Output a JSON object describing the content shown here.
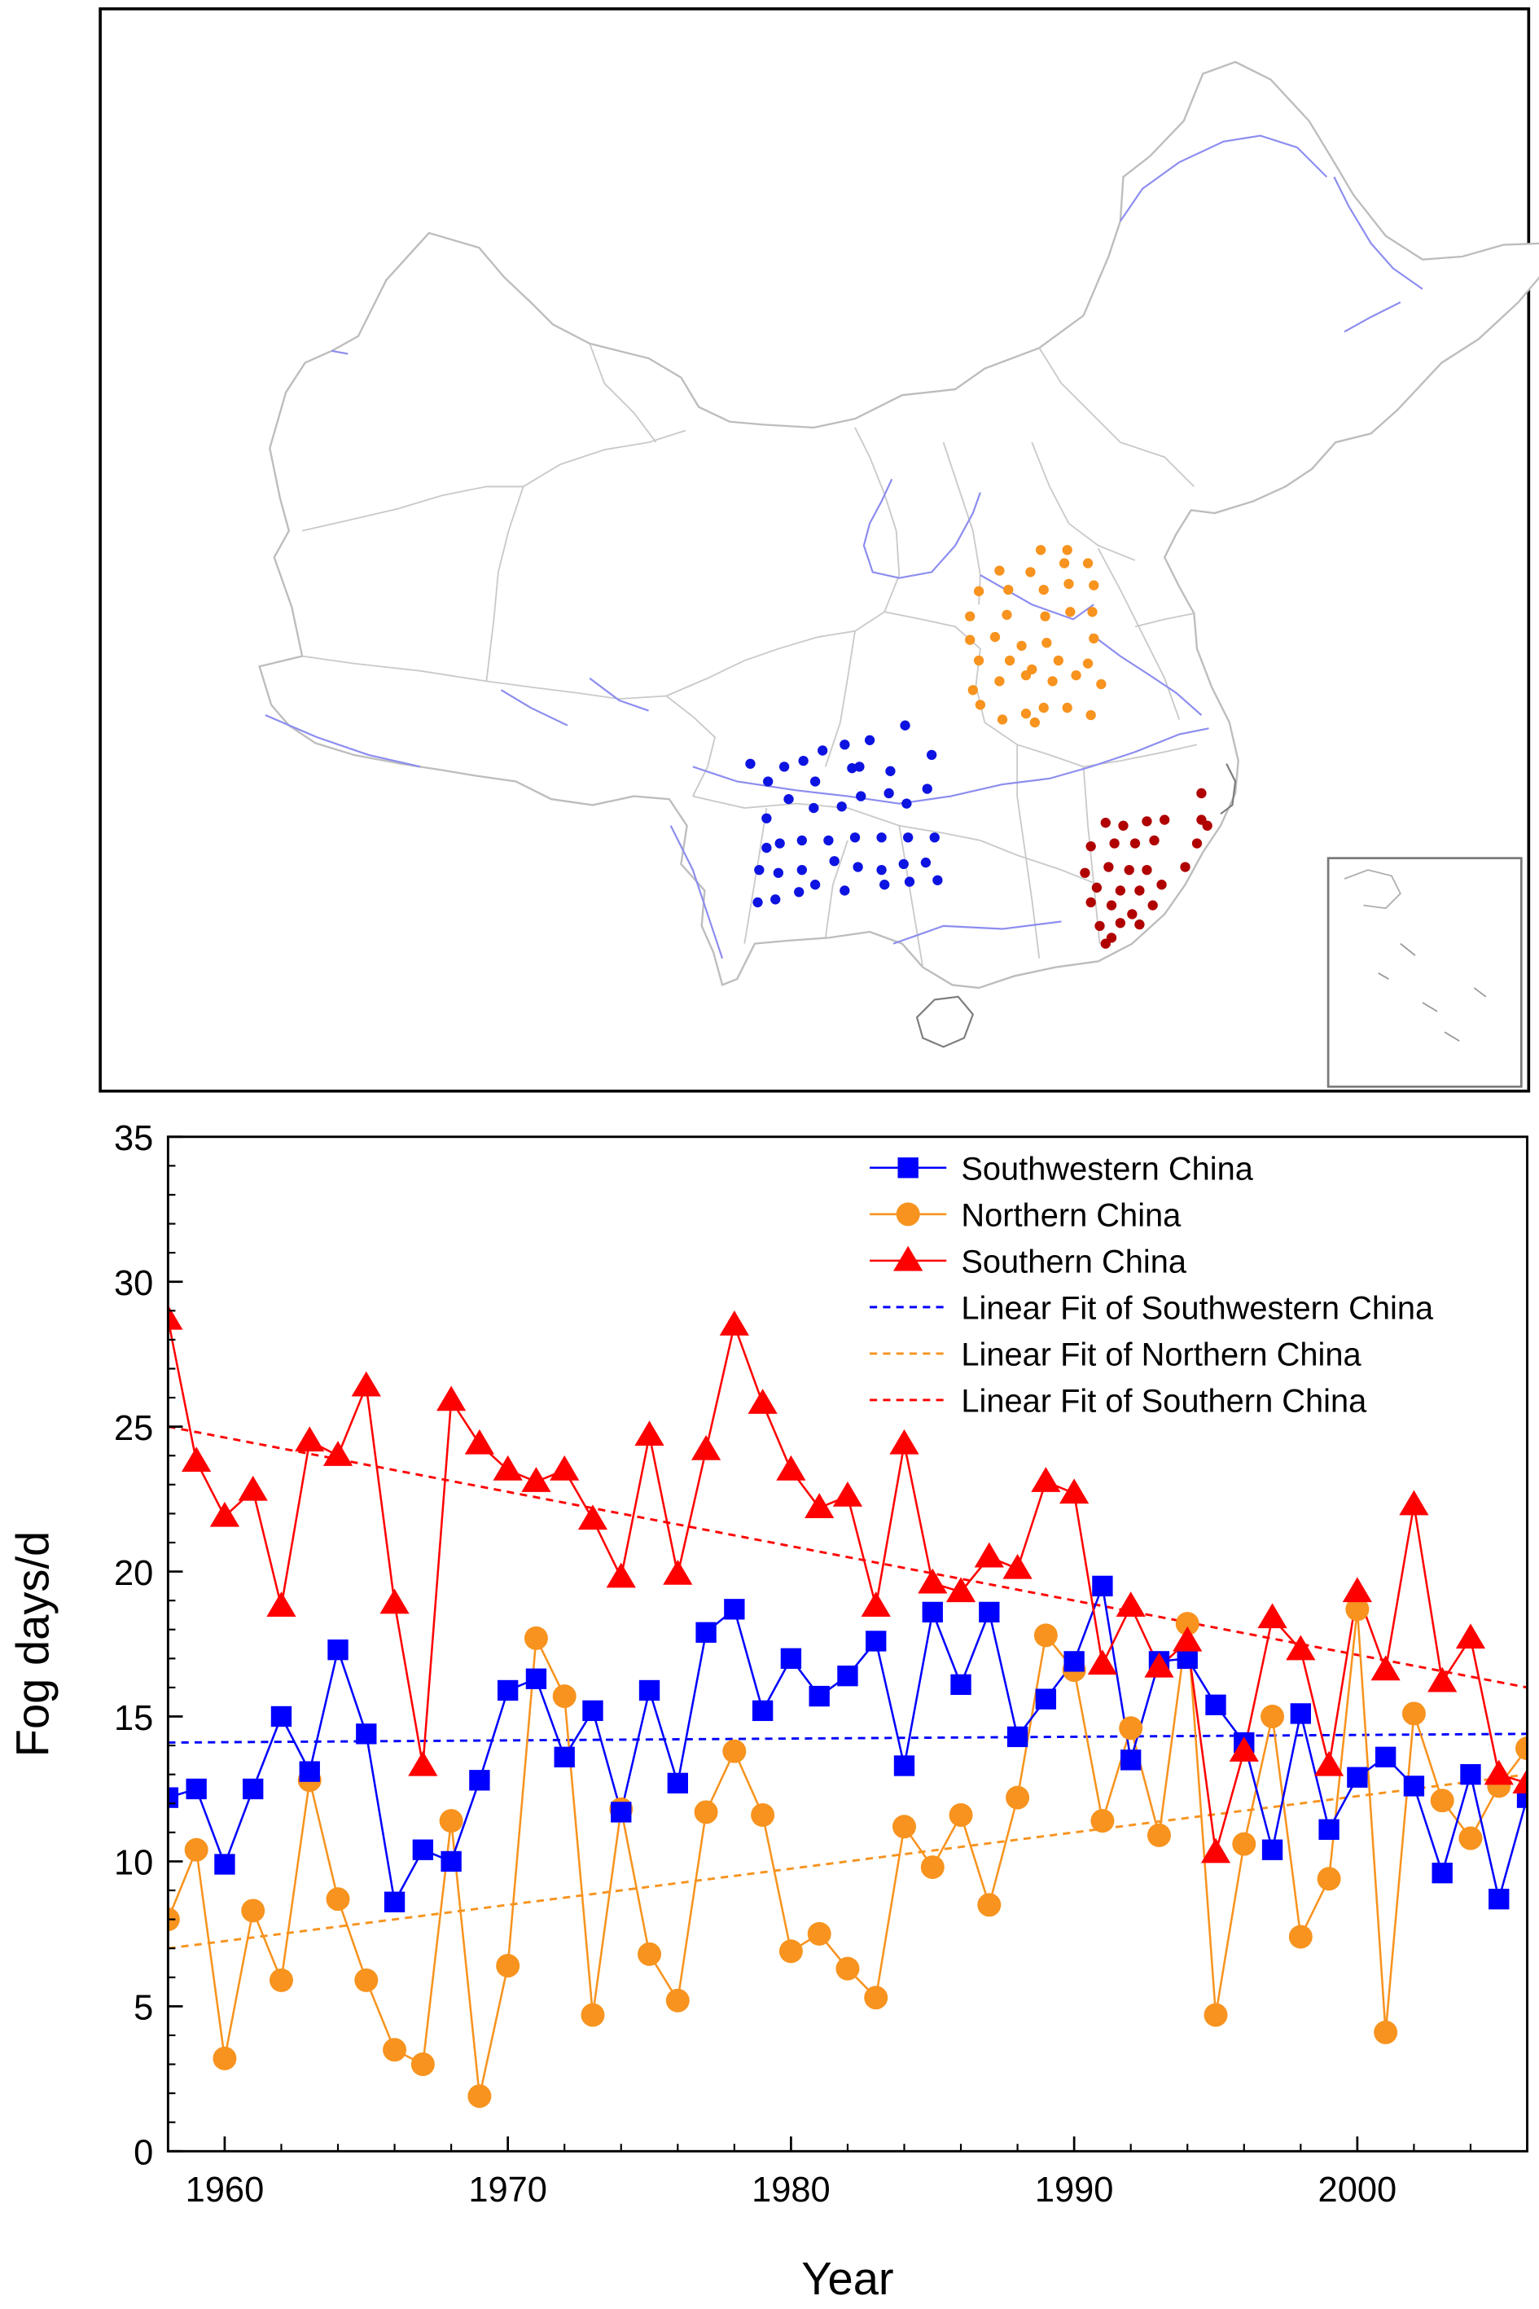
{
  "map_panel": {
    "stations": {
      "southwestern": [
        [
          509,
          518
        ],
        [
          521,
          530
        ],
        [
          545,
          516
        ],
        [
          558,
          509
        ],
        [
          573,
          505
        ],
        [
          590,
          502
        ],
        [
          614,
          492
        ],
        [
          532,
          520
        ],
        [
          553,
          530
        ],
        [
          578,
          521
        ],
        [
          583,
          520
        ],
        [
          604,
          523
        ],
        [
          632,
          512
        ],
        [
          520,
          555
        ],
        [
          535,
          542
        ],
        [
          552,
          548
        ],
        [
          571,
          547
        ],
        [
          584,
          540
        ],
        [
          603,
          538
        ],
        [
          615,
          545
        ],
        [
          629,
          535
        ],
        [
          520,
          575
        ],
        [
          529,
          572
        ],
        [
          544,
          570
        ],
        [
          562,
          570
        ],
        [
          580,
          568
        ],
        [
          598,
          568
        ],
        [
          616,
          568
        ],
        [
          634,
          568
        ],
        [
          515,
          590
        ],
        [
          528,
          592
        ],
        [
          544,
          590
        ],
        [
          566,
          584
        ],
        [
          582,
          588
        ],
        [
          598,
          590
        ],
        [
          613,
          586
        ],
        [
          628,
          585
        ],
        [
          514,
          612
        ],
        [
          526,
          610
        ],
        [
          542,
          605
        ],
        [
          553,
          600
        ],
        [
          573,
          604
        ],
        [
          600,
          600
        ],
        [
          617,
          598
        ],
        [
          636,
          597
        ]
      ],
      "northern": [
        [
          706,
          373
        ],
        [
          724,
          373
        ],
        [
          678,
          387
        ],
        [
          699,
          388
        ],
        [
          722,
          382
        ],
        [
          738,
          382
        ],
        [
          664,
          401
        ],
        [
          684,
          400
        ],
        [
          708,
          400
        ],
        [
          725,
          396
        ],
        [
          742,
          397
        ],
        [
          658,
          418
        ],
        [
          683,
          417
        ],
        [
          709,
          418
        ],
        [
          726,
          415
        ],
        [
          741,
          415
        ],
        [
          658,
          434
        ],
        [
          675,
          432
        ],
        [
          693,
          438
        ],
        [
          710,
          436
        ],
        [
          742,
          433
        ],
        [
          664,
          448
        ],
        [
          685,
          448
        ],
        [
          700,
          454
        ],
        [
          718,
          448
        ],
        [
          738,
          450
        ],
        [
          660,
          468
        ],
        [
          678,
          462
        ],
        [
          696,
          458
        ],
        [
          714,
          462
        ],
        [
          730,
          458
        ],
        [
          747,
          464
        ],
        [
          665,
          478
        ],
        [
          680,
          488
        ],
        [
          696,
          484
        ],
        [
          708,
          480
        ],
        [
          724,
          480
        ],
        [
          740,
          485
        ],
        [
          702,
          490
        ]
      ],
      "southern": [
        [
          815,
          538
        ],
        [
          750,
          558
        ],
        [
          762,
          560
        ],
        [
          778,
          557
        ],
        [
          790,
          556
        ],
        [
          815,
          556
        ],
        [
          819,
          560
        ],
        [
          740,
          574
        ],
        [
          756,
          572
        ],
        [
          770,
          572
        ],
        [
          783,
          570
        ],
        [
          812,
          572
        ],
        [
          736,
          592
        ],
        [
          752,
          588
        ],
        [
          766,
          590
        ],
        [
          778,
          590
        ],
        [
          804,
          588
        ],
        [
          744,
          602
        ],
        [
          760,
          604
        ],
        [
          773,
          604
        ],
        [
          788,
          600
        ],
        [
          740,
          612
        ],
        [
          754,
          614
        ],
        [
          768,
          620
        ],
        [
          782,
          614
        ],
        [
          746,
          628
        ],
        [
          760,
          626
        ],
        [
          773,
          627
        ],
        [
          750,
          640
        ],
        [
          754,
          636
        ]
      ]
    },
    "colors": {
      "southwestern": "#0d13e0",
      "northern": "#f7931e",
      "southern": "#b00000"
    }
  },
  "chart_data": {
    "type": "line",
    "title": "",
    "xlabel": "Year",
    "ylabel": "Fog days/d",
    "xlim": [
      1958,
      2006
    ],
    "ylim": [
      0,
      35
    ],
    "x_ticks": [
      1960,
      1970,
      1980,
      1990,
      2000
    ],
    "y_ticks": [
      0,
      5,
      10,
      15,
      20,
      25,
      30,
      35
    ],
    "x_tick_labels": [
      "1960",
      "1970",
      "1980",
      "1990",
      "2000"
    ],
    "y_tick_labels": [
      "0",
      "5",
      "10",
      "15",
      "20",
      "25",
      "30",
      "35"
    ],
    "grid": false,
    "legend_position": "top-right",
    "x": [
      1958,
      1959,
      1960,
      1961,
      1962,
      1963,
      1964,
      1965,
      1966,
      1967,
      1968,
      1969,
      1970,
      1971,
      1972,
      1973,
      1974,
      1975,
      1976,
      1977,
      1978,
      1979,
      1980,
      1981,
      1982,
      1983,
      1984,
      1985,
      1986,
      1987,
      1988,
      1989,
      1990,
      1991,
      1992,
      1993,
      1994,
      1995,
      1996,
      1997,
      1998,
      1999,
      2000,
      2001,
      2002,
      2003,
      2004,
      2005,
      2006
    ],
    "series": [
      {
        "name": "Southwestern China",
        "color": "#0000ff",
        "marker": "square",
        "values": [
          12.2,
          12.5,
          9.9,
          12.5,
          15.0,
          13.1,
          17.3,
          14.4,
          8.6,
          10.4,
          10.0,
          12.8,
          15.9,
          16.3,
          13.6,
          15.2,
          11.7,
          15.9,
          12.7,
          17.9,
          18.7,
          15.2,
          17.0,
          15.7,
          16.4,
          17.6,
          13.3,
          18.6,
          16.1,
          18.6,
          14.3,
          15.6,
          16.9,
          19.5,
          13.5,
          16.9,
          17.0,
          15.4,
          14.1,
          10.4,
          15.1,
          11.1,
          12.9,
          13.6,
          12.6,
          9.6,
          13.0,
          8.7,
          12.2
        ]
      },
      {
        "name": "Northern China",
        "color": "#f7931e",
        "marker": "circle",
        "values": [
          8.0,
          10.4,
          3.2,
          8.3,
          5.9,
          12.8,
          8.7,
          5.9,
          3.5,
          3.0,
          11.4,
          1.9,
          6.4,
          17.7,
          15.7,
          4.7,
          11.8,
          6.8,
          5.2,
          11.7,
          13.8,
          11.6,
          6.9,
          7.5,
          6.3,
          5.3,
          11.2,
          9.8,
          11.6,
          8.5,
          12.2,
          17.8,
          16.6,
          11.4,
          14.6,
          10.9,
          18.2,
          4.7,
          10.6,
          15.0,
          7.4,
          9.4,
          18.7,
          4.1,
          15.1,
          12.1,
          10.8,
          12.6,
          13.9
        ]
      },
      {
        "name": "Southern China",
        "color": "#ff0000",
        "marker": "triangle",
        "values": [
          28.7,
          23.8,
          21.9,
          22.8,
          18.8,
          24.5,
          24.0,
          26.4,
          18.9,
          13.3,
          25.9,
          24.4,
          23.5,
          23.1,
          23.5,
          21.8,
          19.8,
          24.7,
          19.9,
          24.2,
          28.5,
          25.8,
          23.5,
          22.2,
          22.6,
          18.8,
          24.4,
          19.6,
          19.3,
          20.5,
          20.1,
          23.1,
          22.7,
          16.8,
          18.8,
          16.7,
          17.6,
          10.3,
          13.8,
          18.4,
          17.3,
          13.3,
          19.3,
          16.6,
          22.3,
          16.2,
          17.7,
          13.0,
          12.7
        ]
      }
    ],
    "fits": [
      {
        "name": "Linear Fit of Southwestern China",
        "color": "#0000ff",
        "start": [
          1958,
          14.1
        ],
        "end": [
          2006,
          14.4
        ]
      },
      {
        "name": "Linear Fit of Northern China",
        "color": "#f7931e",
        "start": [
          1958,
          7.0
        ],
        "end": [
          2006,
          13.0
        ]
      },
      {
        "name": "Linear Fit of Southern China",
        "color": "#ff0000",
        "start": [
          1958,
          25.0
        ],
        "end": [
          2006,
          16.0
        ]
      }
    ]
  }
}
